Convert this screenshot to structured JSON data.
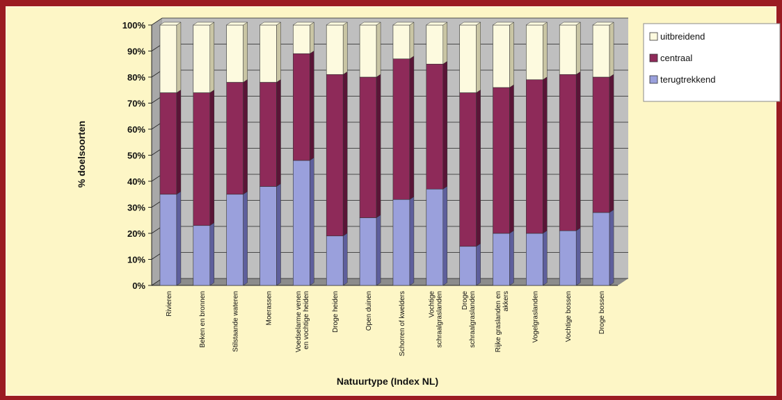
{
  "chart_data": {
    "type": "bar",
    "stacked": true,
    "percent": true,
    "three_d": true,
    "xlabel": "Natuurtype (Index NL)",
    "ylabel": "% doelsoorten",
    "ylim": [
      0,
      100
    ],
    "yticks": [
      "0%",
      "10%",
      "20%",
      "30%",
      "40%",
      "50%",
      "60%",
      "70%",
      "80%",
      "90%",
      "100%"
    ],
    "yticks_values": [
      0,
      10,
      20,
      30,
      40,
      50,
      60,
      70,
      80,
      90,
      100
    ],
    "legend_position": "top-right",
    "categories": [
      [
        "Rivieren"
      ],
      [
        "Beken en bronnen"
      ],
      [
        "Stilstaande wateren"
      ],
      [
        "Moerassen"
      ],
      [
        "Voedselarme venen",
        "en vochtige heiden"
      ],
      [
        "Droge heiden"
      ],
      [
        "Open duinen"
      ],
      [
        "Schorren of kwelders"
      ],
      [
        "Vochtige",
        "schraalgraslanden"
      ],
      [
        "Droge",
        "schraalgraslanden"
      ],
      [
        "Rijke graslanden en",
        "akkers"
      ],
      [
        "Vogelgraslanden"
      ],
      [
        "Vochtige bossen"
      ],
      [
        "Droge bossen"
      ]
    ],
    "series": [
      {
        "name": "terugtrekkend",
        "color": "#9aa0dc",
        "side_color": "#5e5f9c",
        "values": [
          35,
          23,
          35,
          38,
          48,
          19,
          26,
          33,
          37,
          15,
          20,
          20,
          21,
          28
        ]
      },
      {
        "name": "centraal",
        "color": "#8e2a59",
        "side_color": "#5a1537",
        "values": [
          39,
          51,
          43,
          40,
          41,
          62,
          54,
          54,
          48,
          59,
          56,
          59,
          60,
          52
        ]
      },
      {
        "name": "uitbreidend",
        "color": "#fdfadf",
        "side_color": "#c9c5a4",
        "values": [
          26,
          26,
          22,
          22,
          11,
          19,
          20,
          13,
          15,
          26,
          24,
          21,
          19,
          20
        ]
      }
    ],
    "legend_order": [
      "uitbreidend",
      "centraal",
      "terugtrekkend"
    ]
  },
  "colors": {
    "frame": "#9b1b22",
    "panel": "#fdf6c6",
    "wall": "#bfbfbf",
    "floor": "#8c8c8c",
    "grid": "#222222"
  }
}
